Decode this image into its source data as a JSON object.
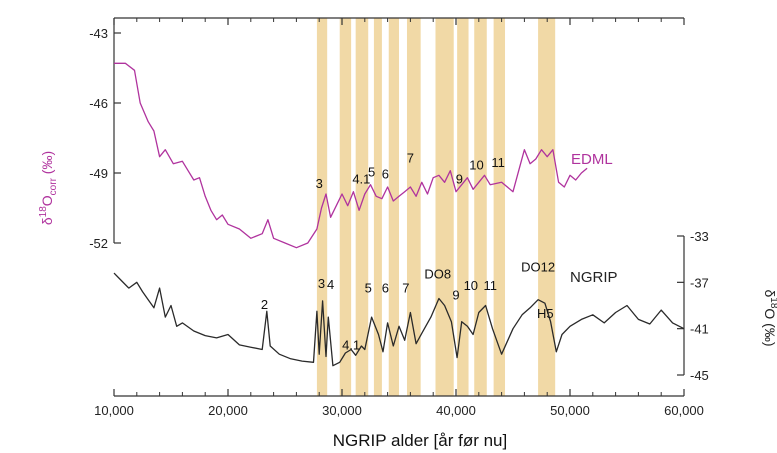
{
  "chart_data": {
    "type": "line",
    "xlabel": "NGRIP alder [år før nu]",
    "xlim": [
      10000,
      60000
    ],
    "x_ticks": [
      10000,
      20000,
      30000,
      40000,
      50000,
      60000
    ],
    "x_tick_labels": [
      "10,000",
      "20,000",
      "30,000",
      "40,000",
      "50,000",
      "60,000"
    ],
    "colors": {
      "edml": "#b0339e",
      "ngrip": "#2a2a2a",
      "band": "#f1d9a6",
      "h5": "#3a4fb0",
      "axis": "#333333"
    },
    "highlight_bands": [
      [
        27800,
        28700
      ],
      [
        29800,
        30800
      ],
      [
        31200,
        32300
      ],
      [
        32800,
        33500
      ],
      [
        34100,
        35000
      ],
      [
        35700,
        36900
      ],
      [
        38200,
        39800
      ],
      [
        40100,
        41100
      ],
      [
        41600,
        42700
      ],
      [
        43300,
        44300
      ],
      [
        47200,
        48700
      ]
    ],
    "left_axis": {
      "label_main": "δ",
      "label_sup": "18",
      "label_mid": "O",
      "label_sub": "corr",
      "label_unit": " (‰)",
      "ylim": [
        -52,
        -43
      ],
      "ticks": [
        -52,
        -49,
        -46,
        -43
      ],
      "tick_labels": [
        "-52",
        "-49",
        "-46",
        "-43"
      ],
      "grid": false
    },
    "right_axis": {
      "label_main": "δ",
      "label_sup": "18",
      "label_rest": "O (‰)",
      "ylim": [
        -45,
        -33
      ],
      "ticks": [
        -45,
        -41,
        -37,
        -33
      ],
      "tick_labels": [
        "-45",
        "-41",
        "-37",
        "-33"
      ],
      "grid": false
    },
    "series": [
      {
        "name": "EDML",
        "axis": "left",
        "x": [
          10000,
          11000,
          11800,
          12300,
          13000,
          13500,
          14000,
          14500,
          15200,
          16000,
          16500,
          17000,
          17500,
          18000,
          18500,
          19000,
          19500,
          20000,
          21000,
          22000,
          23000,
          23500,
          24000,
          25000,
          26000,
          27000,
          27800,
          28200,
          28600,
          29000,
          29500,
          30000,
          30500,
          31000,
          31500,
          32000,
          32500,
          33000,
          33500,
          34000,
          34500,
          35000,
          35500,
          36000,
          36500,
          37000,
          37500,
          38000,
          38500,
          39000,
          39500,
          40000,
          40500,
          41000,
          41500,
          42000,
          42500,
          43000,
          44000,
          45000,
          46000,
          46500,
          47000,
          47500,
          48000,
          48500,
          49000,
          49500,
          50000,
          50500,
          51000,
          51500
        ],
        "y": [
          -44.3,
          -44.3,
          -44.6,
          -46.0,
          -46.8,
          -47.2,
          -48.3,
          -48.0,
          -48.6,
          -48.5,
          -48.9,
          -49.3,
          -49.2,
          -50.0,
          -50.6,
          -51.0,
          -50.8,
          -51.2,
          -51.4,
          -51.8,
          -51.6,
          -51.0,
          -51.8,
          -52.0,
          -52.2,
          -52.0,
          -51.4,
          -50.5,
          -49.9,
          -50.9,
          -50.4,
          -49.9,
          -50.4,
          -49.8,
          -50.6,
          -49.9,
          -49.5,
          -50.0,
          -50.1,
          -49.6,
          -50.2,
          -50.0,
          -49.8,
          -49.6,
          -50.0,
          -49.4,
          -49.9,
          -49.2,
          -49.1,
          -49.4,
          -48.9,
          -49.8,
          -49.5,
          -49.2,
          -49.7,
          -49.4,
          -49.1,
          -49.5,
          -49.4,
          -49.8,
          -48.0,
          -48.6,
          -48.4,
          -48.0,
          -48.3,
          -48.0,
          -49.4,
          -49.6,
          -49.1,
          -49.3,
          -49.0,
          -48.8
        ]
      },
      {
        "name": "NGRIP",
        "axis": "right",
        "x": [
          10000,
          10600,
          11300,
          12000,
          12500,
          13000,
          13500,
          14000,
          14500,
          15000,
          15500,
          16000,
          17000,
          18000,
          19000,
          20000,
          21000,
          22000,
          23000,
          23400,
          23700,
          24500,
          25500,
          26500,
          27500,
          27800,
          28000,
          28300,
          28600,
          28800,
          29200,
          29800,
          30300,
          30800,
          31200,
          31700,
          32000,
          32600,
          33200,
          33600,
          34000,
          34500,
          35000,
          35500,
          36000,
          36500,
          37000,
          37800,
          38500,
          39000,
          39600,
          40100,
          40500,
          41000,
          41500,
          42000,
          42600,
          43200,
          44000,
          45000,
          45800,
          46500,
          47200,
          47800,
          48300,
          48800,
          49300,
          50000,
          51000,
          52000,
          53000,
          54000,
          55000,
          56000,
          57000,
          58000,
          59000,
          60000
        ],
        "y": [
          -36.2,
          -36.8,
          -37.5,
          -37.0,
          -37.8,
          -38.5,
          -39.2,
          -37.5,
          -40.0,
          -39.0,
          -40.8,
          -40.5,
          -41.2,
          -41.6,
          -41.8,
          -41.5,
          -42.4,
          -42.6,
          -42.8,
          -39.5,
          -42.5,
          -43.2,
          -43.6,
          -43.8,
          -43.9,
          -39.5,
          -43.2,
          -38.6,
          -43.4,
          -40.0,
          -44.2,
          -43.9,
          -43.1,
          -42.8,
          -43.3,
          -42.5,
          -42.8,
          -40.0,
          -41.5,
          -43.0,
          -40.5,
          -42.5,
          -40.8,
          -42.0,
          -39.6,
          -42.3,
          -41.4,
          -40.0,
          -38.4,
          -39.0,
          -40.4,
          -43.5,
          -40.4,
          -40.8,
          -41.5,
          -39.6,
          -39.0,
          -41.0,
          -43.2,
          -41.0,
          -39.8,
          -39.2,
          -38.5,
          -38.8,
          -40.4,
          -43.0,
          -41.5,
          -40.8,
          -40.2,
          -39.8,
          -40.5,
          -39.6,
          -39.0,
          -40.2,
          -40.6,
          -39.4,
          -40.5,
          -41.0
        ]
      }
    ],
    "labels": {
      "edml_name": "EDML",
      "ngrip_name": "NGRIP",
      "h5": "H5"
    },
    "annotations_top": [
      {
        "text": "3",
        "x": 28000,
        "y": -49.9
      },
      {
        "text": "4.1",
        "x": 31700,
        "y": -49.7
      },
      {
        "text": "5",
        "x": 32600,
        "y": -49.4
      },
      {
        "text": "6",
        "x": 33800,
        "y": -49.5
      },
      {
        "text": "7",
        "x": 36000,
        "y": -48.8
      },
      {
        "text": "9",
        "x": 40300,
        "y": -49.7
      },
      {
        "text": "10",
        "x": 41800,
        "y": -49.1
      },
      {
        "text": "11",
        "x": 43700,
        "y": -49.0
      }
    ],
    "annotations_bottom": [
      {
        "text": "2",
        "x": 23200,
        "y": -39.8
      },
      {
        "text": "3",
        "x": 28200,
        "y": -38.0
      },
      {
        "text": "4",
        "x": 29000,
        "y": -38.1
      },
      {
        "text": "4.1",
        "x": 30800,
        "y": -43.3
      },
      {
        "text": "5",
        "x": 32300,
        "y": -38.4
      },
      {
        "text": "6",
        "x": 33800,
        "y": -38.4
      },
      {
        "text": "7",
        "x": 35600,
        "y": -38.4
      },
      {
        "text": "DO8",
        "x": 38400,
        "y": -37.2
      },
      {
        "text": "9",
        "x": 40000,
        "y": -39.0
      },
      {
        "text": "10",
        "x": 41300,
        "y": -38.2
      },
      {
        "text": "11",
        "x": 43000,
        "y": -38.2
      },
      {
        "text": "DO12",
        "x": 47200,
        "y": -36.6
      }
    ]
  }
}
